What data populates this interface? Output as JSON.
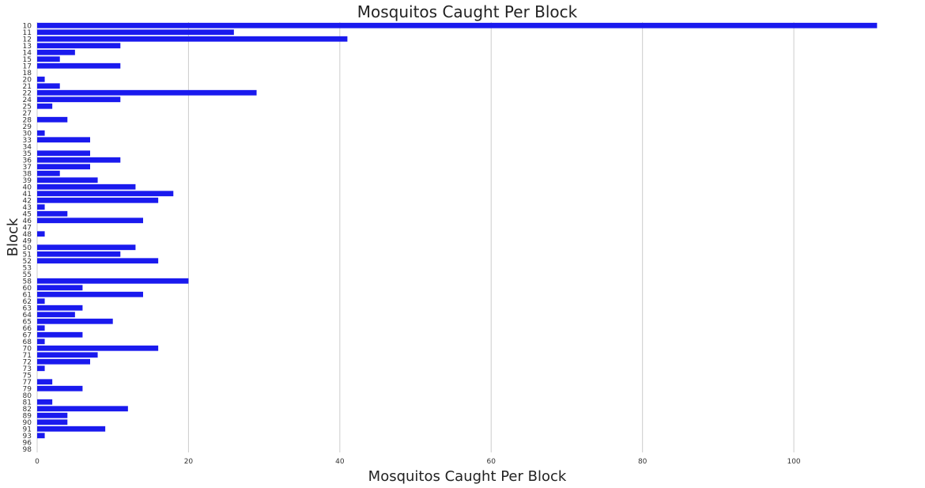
{
  "chart_data": {
    "type": "bar",
    "orientation": "horizontal",
    "title": "Mosquitos Caught Per Block",
    "xlabel": "Mosquitos Caught Per Block",
    "ylabel": "Block",
    "xlim": [
      0,
      116.5
    ],
    "xticks": [
      0,
      20,
      40,
      60,
      80,
      100
    ],
    "grid": "vertical",
    "bar_color": "#1a1aee",
    "categories": [
      "10",
      "11",
      "12",
      "13",
      "14",
      "15",
      "17",
      "18",
      "20",
      "21",
      "22",
      "24",
      "25",
      "27",
      "28",
      "29",
      "30",
      "33",
      "34",
      "35",
      "36",
      "37",
      "38",
      "39",
      "40",
      "41",
      "42",
      "43",
      "45",
      "46",
      "47",
      "48",
      "49",
      "50",
      "51",
      "52",
      "53",
      "55",
      "58",
      "60",
      "61",
      "62",
      "63",
      "64",
      "65",
      "66",
      "67",
      "68",
      "70",
      "71",
      "72",
      "73",
      "75",
      "77",
      "79",
      "80",
      "81",
      "82",
      "89",
      "90",
      "91",
      "93",
      "96",
      "98"
    ],
    "values": [
      111,
      26,
      41,
      11,
      5,
      3,
      11,
      0,
      1,
      3,
      29,
      11,
      2,
      0,
      4,
      0,
      1,
      7,
      0,
      7,
      11,
      7,
      3,
      8,
      13,
      18,
      16,
      1,
      4,
      14,
      0,
      1,
      0,
      13,
      11,
      16,
      0,
      0,
      20,
      6,
      14,
      1,
      6,
      5,
      10,
      1,
      6,
      1,
      16,
      8,
      7,
      1,
      0,
      2,
      6,
      0,
      2,
      12,
      4,
      4,
      9,
      1,
      0,
      0
    ]
  }
}
